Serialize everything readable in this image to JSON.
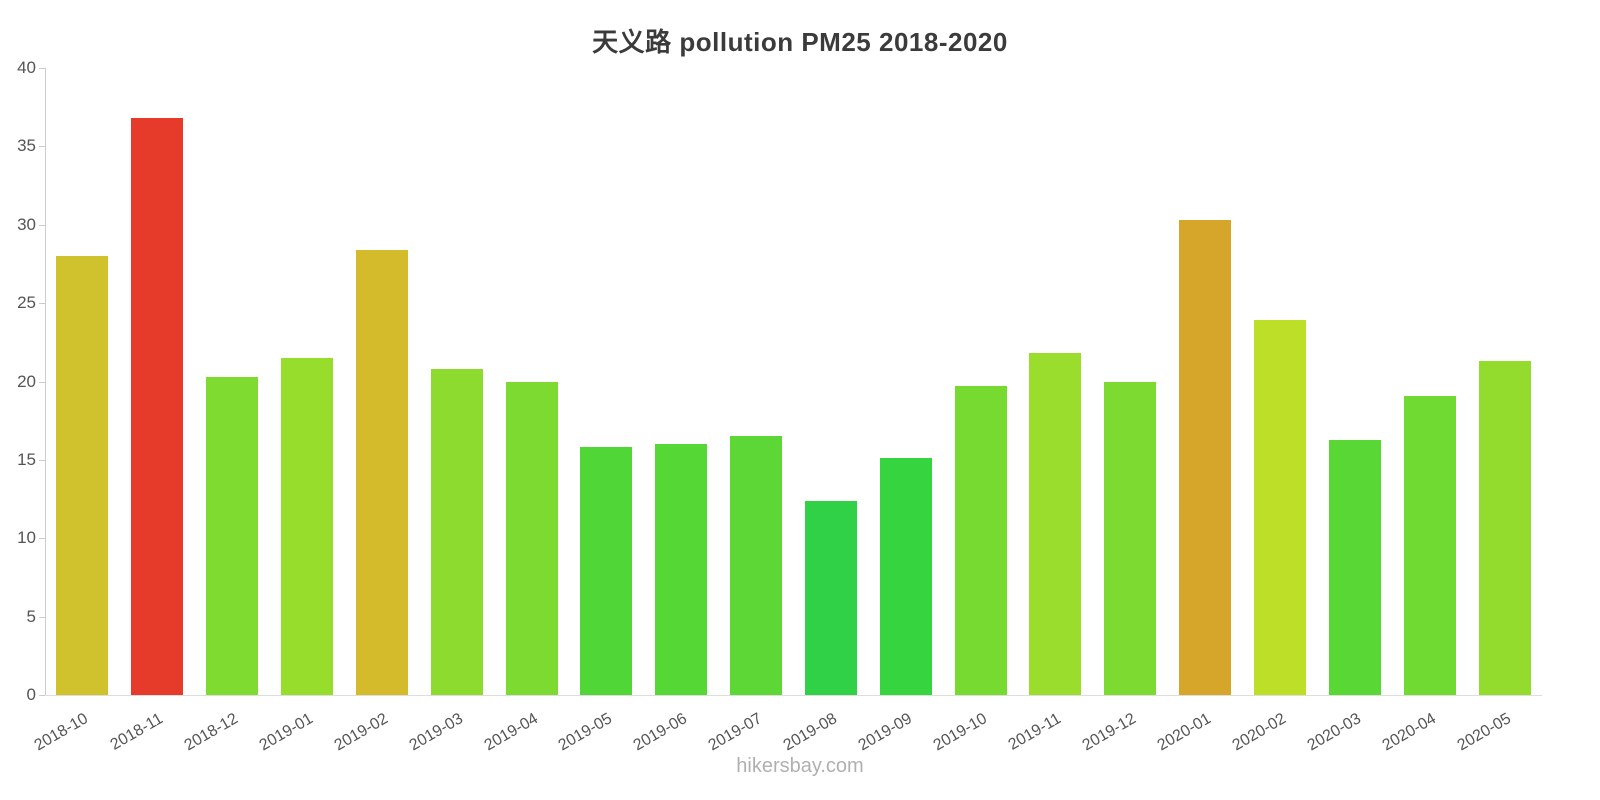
{
  "title": "天义路 pollution PM25 2018-2020",
  "watermark": "hikersbay.com",
  "chart_data": {
    "type": "bar",
    "title": "天义路 pollution PM25 2018-2020",
    "xlabel": "",
    "ylabel": "",
    "ylim": [
      0,
      40
    ],
    "yticks": [
      0,
      5,
      10,
      15,
      20,
      25,
      30,
      35,
      40
    ],
    "grid": false,
    "legend": "none",
    "categories": [
      "2018-10",
      "2018-11",
      "2018-12",
      "2019-01",
      "2019-02",
      "2019-03",
      "2019-04",
      "2019-05",
      "2019-06",
      "2019-07",
      "2019-08",
      "2019-09",
      "2019-10",
      "2019-11",
      "2019-12",
      "2020-01",
      "2020-02",
      "2020-03",
      "2020-04",
      "2020-05"
    ],
    "values": [
      28.0,
      36.8,
      20.3,
      21.5,
      28.4,
      20.8,
      20.0,
      15.8,
      16.0,
      16.5,
      12.4,
      15.1,
      19.7,
      21.8,
      20.0,
      30.3,
      23.9,
      16.3,
      19.1,
      21.3
    ],
    "colors": [
      "#d0c22c",
      "#e63a2a",
      "#7fdb2f",
      "#97dd2c",
      "#d3bb2b",
      "#8cdb2e",
      "#7dda30",
      "#50d637",
      "#55d736",
      "#5cd735",
      "#30d146",
      "#36d43f",
      "#77da31",
      "#9add2c",
      "#7dda30",
      "#d6a62b",
      "#bedf28",
      "#58d735",
      "#70d932",
      "#93dc2d"
    ]
  }
}
